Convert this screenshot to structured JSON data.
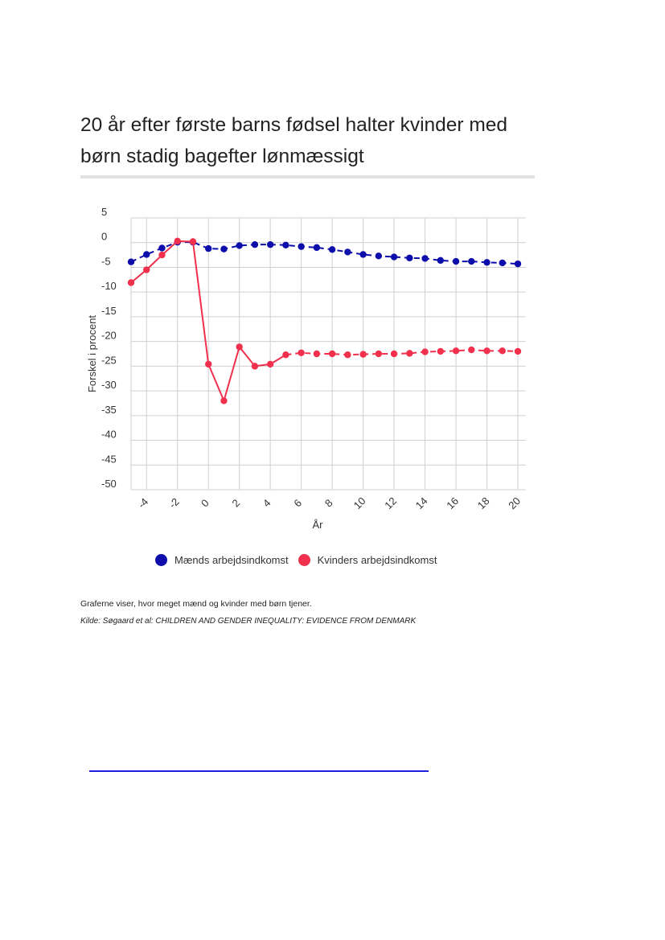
{
  "header": {
    "title": "20 år efter første barns fødsel halter kvinder med børn stadig bagefter lønmæssigt"
  },
  "chart_data": {
    "type": "line",
    "title": "20 år efter første barns fødsel halter kvinder med børn stadig bagefter lønmæssigt",
    "xlabel": "År",
    "ylabel": "Forskel i procent",
    "xlim": [
      -5,
      20
    ],
    "ylim": [
      -50,
      5
    ],
    "x_ticks": [
      -4,
      -2,
      0,
      2,
      4,
      6,
      8,
      10,
      12,
      14,
      16,
      18,
      20
    ],
    "x_tick_labels": [
      "-4",
      "-2",
      "0",
      "2",
      "4",
      "6",
      "8",
      "10",
      "12",
      "14",
      "16",
      "18",
      "20"
    ],
    "y_ticks": [
      5,
      0,
      -5,
      -10,
      -15,
      -20,
      -25,
      -30,
      -35,
      -40,
      -45,
      -50
    ],
    "y_tick_labels": [
      "5",
      "0",
      "-5",
      "-10",
      "-15",
      "-20",
      "-25",
      "-30",
      "-35",
      "-40",
      "-45",
      "-50"
    ],
    "grid": true,
    "legend_position": "bottom",
    "x": [
      -5,
      -4,
      -3,
      -2,
      -1,
      0,
      1,
      2,
      3,
      4,
      5,
      6,
      7,
      8,
      9,
      10,
      11,
      12,
      13,
      14,
      15,
      16,
      17,
      18,
      19,
      20
    ],
    "series": [
      {
        "name": "Mænds arbejdsindkomst",
        "color": "#0d0dab",
        "dashed": true,
        "values": [
          -3.9,
          -2.4,
          -1.1,
          0.1,
          0.1,
          -1.2,
          -1.3,
          -0.6,
          -0.4,
          -0.4,
          -0.5,
          -0.8,
          -1.0,
          -1.4,
          -1.9,
          -2.4,
          -2.7,
          -2.9,
          -3.1,
          -3.2,
          -3.6,
          -3.8,
          -3.8,
          -4.0,
          -4.1,
          -4.3
        ]
      },
      {
        "name": "Kvinders arbejdsindkomst",
        "color": "#f0304c",
        "dashed": false,
        "dashed_from_x": 5,
        "values": [
          -8.1,
          -5.5,
          -2.5,
          0.3,
          0.2,
          -24.6,
          -32.0,
          -21.1,
          -25.0,
          -24.6,
          -22.7,
          -22.3,
          -22.5,
          -22.5,
          -22.7,
          -22.6,
          -22.5,
          -22.5,
          -22.4,
          -22.1,
          -22.0,
          -21.9,
          -21.7,
          -21.9,
          -21.9,
          -22.0
        ]
      }
    ]
  },
  "legend": {
    "items": [
      {
        "label": "Mænds arbejdsindkomst",
        "color": "#0d0dab"
      },
      {
        "label": "Kvinders arbejdsindkomst",
        "color": "#f0304c"
      }
    ]
  },
  "footer": {
    "caption": "Graferne viser, hvor meget mænd og kvinder med børn tjener.",
    "source": "Kilde: Søgaard et al: CHILDREN AND GENDER INEQUALITY: EVIDENCE FROM DENMARK"
  }
}
